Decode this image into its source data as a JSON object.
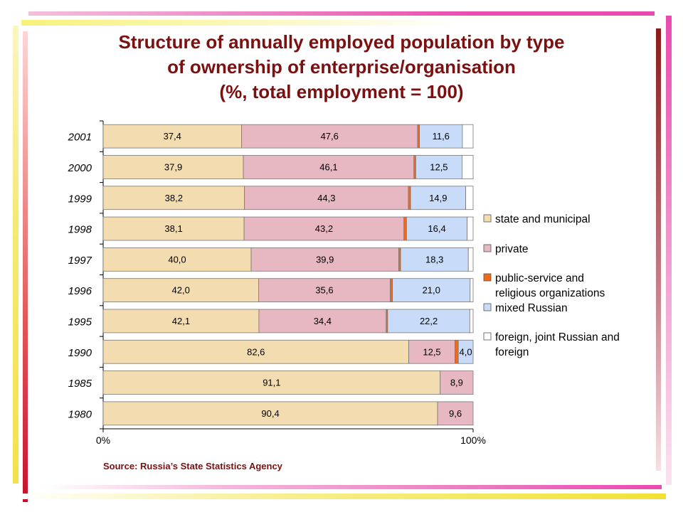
{
  "title_lines": [
    "Structure of annually employed population by type",
    "of ownership of enterprise/organisation",
    "(%, total employment = 100)"
  ],
  "source": "Source: Russia’s State Statistics Agency",
  "colors": {
    "state": "#f3dcb0",
    "private": "#e7b7c2",
    "public": "#f06a1e",
    "mixed": "#c8dcfa",
    "foreign": "#ffffff",
    "bar_border": "#777777",
    "title": "#7a1010"
  },
  "chart_data": {
    "type": "bar",
    "orientation": "horizontal",
    "stacked": "percent",
    "categories": [
      "2001",
      "2000",
      "1999",
      "1998",
      "1997",
      "1996",
      "1995",
      "1990",
      "1985",
      "1980"
    ],
    "series": [
      {
        "name": "state and municipal",
        "values": [
          37.4,
          37.9,
          38.2,
          38.1,
          40.0,
          42.0,
          42.1,
          82.6,
          91.1,
          90.4
        ],
        "labels": [
          "37,4",
          "37,9",
          "38,2",
          "38,1",
          "40,0",
          "42,0",
          "42,1",
          "82,6",
          "91,1",
          "90,4"
        ]
      },
      {
        "name": "private",
        "values": [
          47.6,
          46.1,
          44.3,
          43.2,
          39.9,
          35.6,
          34.4,
          12.5,
          8.9,
          9.6
        ],
        "labels": [
          "47,6",
          "46,1",
          "44,3",
          "43,2",
          "39,9",
          "35,6",
          "34,4",
          "12,5",
          "8,9",
          "9,6"
        ]
      },
      {
        "name": "public-service and religious organizations",
        "values": [
          0.5,
          0.5,
          0.6,
          0.7,
          0.5,
          0.6,
          0.4,
          0.9,
          0,
          0
        ],
        "labels": [
          "",
          "",
          "",
          "",
          "",
          "",
          "",
          "",
          "",
          ""
        ]
      },
      {
        "name": "mixed Russian",
        "values": [
          11.6,
          12.5,
          14.9,
          16.4,
          18.3,
          21.0,
          22.2,
          4.0,
          0,
          0
        ],
        "labels": [
          "11,6",
          "12,5",
          "14,9",
          "16,4",
          "18,3",
          "21,0",
          "22,2",
          "4,0",
          "",
          ""
        ]
      },
      {
        "name": "foreign, joint Russian and foreign",
        "values": [
          2.9,
          3.0,
          2.0,
          1.6,
          1.3,
          0.8,
          0.9,
          0,
          0,
          0
        ],
        "labels": [
          "",
          "",
          "",
          "",
          "",
          "",
          "",
          "",
          "",
          ""
        ]
      }
    ],
    "legend_items": [
      {
        "lines": [
          "state and municipal"
        ]
      },
      {
        "lines": [
          "private"
        ]
      },
      {
        "lines": [
          "public-service and",
          "religious organizations"
        ]
      },
      {
        "lines": [
          "mixed Russian"
        ]
      },
      {
        "lines": [
          "foreign, joint Russian and",
          "foreign"
        ]
      }
    ],
    "xlim": [
      0,
      100
    ],
    "xticks": [
      "0%",
      "100%"
    ],
    "grid": false,
    "legend_position": "right"
  }
}
